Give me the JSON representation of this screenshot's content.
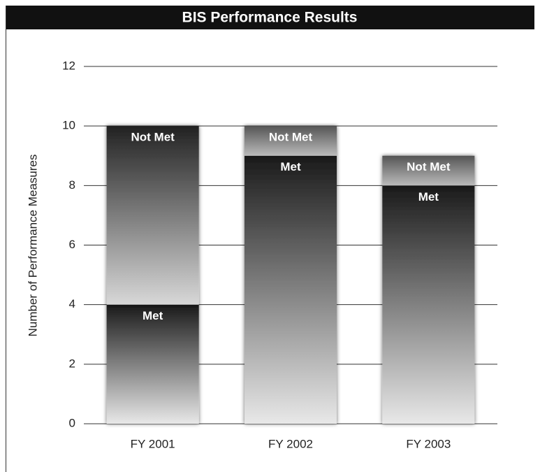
{
  "chart_data": {
    "type": "stacked_bar",
    "title": "BIS Performance Results",
    "y_label": "Number of Performance Measures",
    "categories": [
      "FY 2001",
      "FY 2002",
      "FY 2003"
    ],
    "series": [
      {
        "name": "Met",
        "values": [
          4,
          9,
          8
        ]
      },
      {
        "name": "Not Met",
        "values": [
          6,
          1,
          1
        ]
      }
    ],
    "ylim": [
      0,
      12
    ],
    "yticks": [
      0,
      2,
      4,
      6,
      8,
      10,
      12
    ],
    "grid": true
  }
}
